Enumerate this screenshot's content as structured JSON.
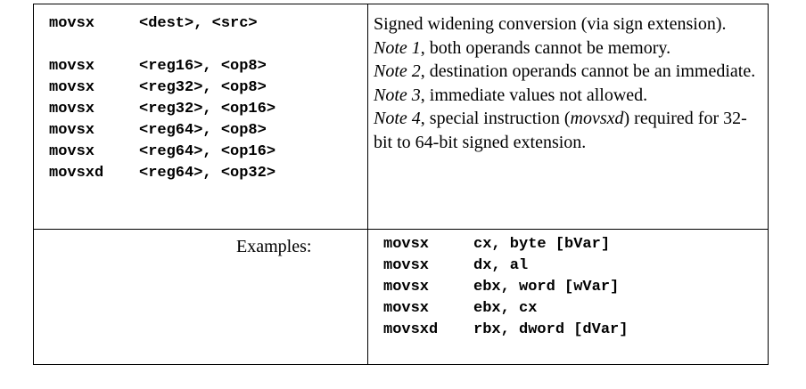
{
  "syntax": {
    "header": {
      "mnemonic": "movsx",
      "operands": "<dest>, <src>"
    },
    "forms": [
      {
        "mnemonic": "movsx",
        "operands": "<reg16>, <op8>"
      },
      {
        "mnemonic": "movsx",
        "operands": "<reg32>, <op8>"
      },
      {
        "mnemonic": "movsx",
        "operands": "<reg32>, <op16>"
      },
      {
        "mnemonic": "movsx",
        "operands": "<reg64>, <op8>"
      },
      {
        "mnemonic": "movsx",
        "operands": "<reg64>, <op16>"
      },
      {
        "mnemonic": "movsxd",
        "operands": "<reg64>, <op32>"
      }
    ]
  },
  "description": {
    "summary": "Signed widening conversion (via sign extension).",
    "note1_label": "Note 1",
    "note1_text": ", both operands cannot be memory.",
    "note2_label": "Note 2",
    "note2_text": ", destination operands cannot be an immediate.",
    "note3_label": "Note 3",
    "note3_text": ", immediate values not allowed.",
    "note4_label": "Note 4",
    "note4_text_a": ", special instruction (",
    "note4_instr": "movsxd",
    "note4_text_b": ") required for 32-bit to 64-bit signed extension."
  },
  "examples": {
    "label": "Examples:",
    "lines": [
      {
        "mnemonic": "movsx",
        "operands": "cx, byte [bVar]"
      },
      {
        "mnemonic": "movsx",
        "operands": "dx, al"
      },
      {
        "mnemonic": "movsx",
        "operands": "ebx, word [wVar]"
      },
      {
        "mnemonic": "movsx",
        "operands": "ebx, cx"
      },
      {
        "mnemonic": "movsxd",
        "operands": "rbx, dword [dVar]"
      }
    ]
  }
}
